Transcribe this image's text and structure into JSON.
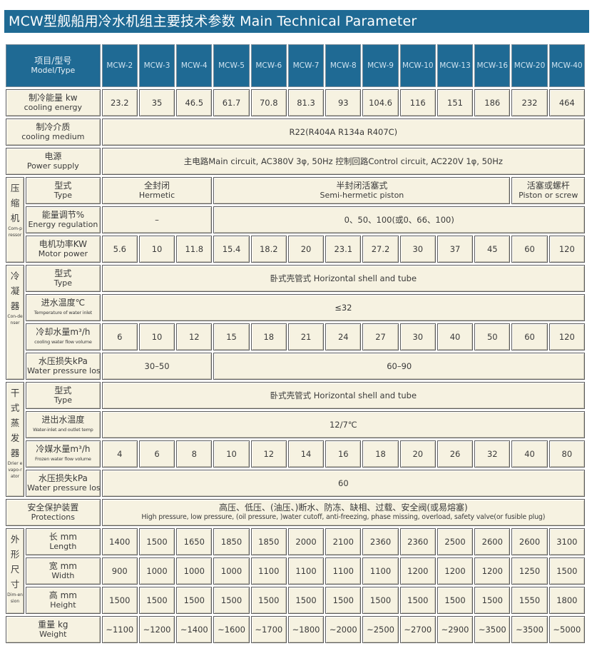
{
  "title": "MCW型舰船用冷水机组主要技术参数 Main Technical Parameter",
  "colors": {
    "title_bg": "#1f6a94",
    "header_bg": "#1f6a94",
    "cell_bg": "#f6f2e1"
  },
  "header": {
    "cn": "项目/型号",
    "en": "Model/Type",
    "models": [
      "MCW-2",
      "MCW-3",
      "MCW-4",
      "MCW-5",
      "MCW-6",
      "MCW-7",
      "MCW-8",
      "MCW-9",
      "MCW-10",
      "MCW-13",
      "MCW-16",
      "MCW-20",
      "MCW-40"
    ]
  },
  "sections": [
    {
      "rows": [
        {
          "cn": "制冷能量 kw",
          "en": "cooling energy",
          "cells": [
            {
              "text": "23.2"
            },
            {
              "text": "35"
            },
            {
              "text": "46.5"
            },
            {
              "text": "61.7"
            },
            {
              "text": "70.8"
            },
            {
              "text": "81.3"
            },
            {
              "text": "93"
            },
            {
              "text": "104.6"
            },
            {
              "text": "116"
            },
            {
              "text": "151"
            },
            {
              "text": "186"
            },
            {
              "text": "232"
            },
            {
              "text": "464"
            }
          ]
        }
      ]
    },
    {
      "rows": [
        {
          "cn": "制冷介质",
          "en": "cooling medium",
          "cells": [
            {
              "text": "R22(R404A  R134a  R407C)",
              "span": 13
            }
          ]
        }
      ]
    },
    {
      "rows": [
        {
          "cn": "电源",
          "en": "Power supply",
          "cells": [
            {
              "text": "主电路Main circuit, AC380V 3φ, 50Hz        控制回路Control circuit, AC220V 1φ, 50Hz",
              "span": 13
            }
          ]
        }
      ]
    },
    {
      "group": {
        "cn": "压缩机",
        "en": "Com-pressor"
      },
      "rows": [
        {
          "cn": "型式",
          "en": "Type",
          "cells": [
            {
              "text": "全封闭",
              "en": "Hermetic",
              "span": 3
            },
            {
              "text": "半封闭活塞式",
              "en": "Semi-hermetic piston",
              "span": 8
            },
            {
              "text": "活塞或螺杆",
              "en": "Piston or screw",
              "span": 2
            }
          ]
        },
        {
          "cn": "能量调节%",
          "en": "Energy regulation",
          "cells": [
            {
              "text": "–",
              "span": 3
            },
            {
              "text": "0、50、100(或0、66、100)",
              "span": 10
            }
          ]
        },
        {
          "cn": "电机功率KW",
          "en": "Motor power",
          "cells": [
            {
              "text": "5.6"
            },
            {
              "text": "10"
            },
            {
              "text": "11.8"
            },
            {
              "text": "15.4"
            },
            {
              "text": "18.2"
            },
            {
              "text": "20"
            },
            {
              "text": "23.1"
            },
            {
              "text": "27.2"
            },
            {
              "text": "30"
            },
            {
              "text": "37"
            },
            {
              "text": "45"
            },
            {
              "text": "60"
            },
            {
              "text": "120"
            }
          ]
        }
      ]
    },
    {
      "group": {
        "cn": "冷凝器",
        "en": "Con-denser"
      },
      "rows": [
        {
          "cn": "型式",
          "en": "Type",
          "cells": [
            {
              "text": "卧式壳管式  Horizontal shell and tube",
              "span": 13
            }
          ]
        },
        {
          "cn": "进水温度℃",
          "en": "Temperature of water inlet",
          "cells": [
            {
              "text": "≤32",
              "span": 13
            }
          ]
        },
        {
          "cn": "冷却水量m³/h",
          "en": "cooling water flow volume",
          "cells": [
            {
              "text": "6"
            },
            {
              "text": "10"
            },
            {
              "text": "12"
            },
            {
              "text": "15"
            },
            {
              "text": "18"
            },
            {
              "text": "21"
            },
            {
              "text": "24"
            },
            {
              "text": "27"
            },
            {
              "text": "30"
            },
            {
              "text": "40"
            },
            {
              "text": "50"
            },
            {
              "text": "60"
            },
            {
              "text": "120"
            }
          ]
        },
        {
          "cn": "水压损失kPa",
          "en": "Water pressure loss",
          "cells": [
            {
              "text": "30–50",
              "span": 3
            },
            {
              "text": "60–90",
              "span": 10
            }
          ]
        }
      ]
    },
    {
      "group": {
        "cn": "干式蒸发器",
        "en": "Drier evapo-rator"
      },
      "rows": [
        {
          "cn": "型式",
          "en": "Type",
          "cells": [
            {
              "text": "卧式壳管式  Horizontal shell and tube",
              "span": 13
            }
          ]
        },
        {
          "cn": "进出水温度",
          "en": "Water-inlet and outlet temp",
          "cells": [
            {
              "text": "12/7℃",
              "span": 13
            }
          ]
        },
        {
          "cn": "冷媒水量m³/h",
          "en": "Frozen water flow volume",
          "cells": [
            {
              "text": "4"
            },
            {
              "text": "6"
            },
            {
              "text": "8"
            },
            {
              "text": "10"
            },
            {
              "text": "12"
            },
            {
              "text": "14"
            },
            {
              "text": "16"
            },
            {
              "text": "18"
            },
            {
              "text": "20"
            },
            {
              "text": "26"
            },
            {
              "text": "32"
            },
            {
              "text": "40"
            },
            {
              "text": "80"
            }
          ]
        },
        {
          "cn": "水压损失kPa",
          "en": "Water pressure loss",
          "cells": [
            {
              "text": "60",
              "span": 13
            }
          ]
        }
      ]
    },
    {
      "rows": [
        {
          "cn": "安全保护装置",
          "en": "Protections",
          "cells": [
            {
              "text": "高压、低压、(油压、)断水、防冻、缺相、过载、安全阀(或易熔塞)",
              "en": "High pressure, low pressure, (oil pressure, )water cutoff, anti-freezing, phase missing, overload, safety valve(or fusible plug)",
              "span": 13,
              "prot": true
            }
          ]
        }
      ]
    },
    {
      "group": {
        "cn": "外形尺寸",
        "en": "Dim-ension"
      },
      "rows": [
        {
          "cn": "长 mm",
          "en": "Length",
          "cells": [
            {
              "text": "1400"
            },
            {
              "text": "1500"
            },
            {
              "text": "1650"
            },
            {
              "text": "1850"
            },
            {
              "text": "1850"
            },
            {
              "text": "2000"
            },
            {
              "text": "2100"
            },
            {
              "text": "2360"
            },
            {
              "text": "2360"
            },
            {
              "text": "2500"
            },
            {
              "text": "2600"
            },
            {
              "text": "2600"
            },
            {
              "text": "3100"
            }
          ]
        },
        {
          "cn": "宽 mm",
          "en": "Width",
          "cells": [
            {
              "text": "900"
            },
            {
              "text": "1000"
            },
            {
              "text": "1000"
            },
            {
              "text": "1000"
            },
            {
              "text": "1100"
            },
            {
              "text": "1100"
            },
            {
              "text": "1100"
            },
            {
              "text": "1100"
            },
            {
              "text": "1200"
            },
            {
              "text": "1200"
            },
            {
              "text": "1200"
            },
            {
              "text": "1250"
            },
            {
              "text": "1500"
            }
          ]
        },
        {
          "cn": "高 mm",
          "en": "Height",
          "cells": [
            {
              "text": "1500"
            },
            {
              "text": "1500"
            },
            {
              "text": "1500"
            },
            {
              "text": "1500"
            },
            {
              "text": "1500"
            },
            {
              "text": "1500"
            },
            {
              "text": "1500"
            },
            {
              "text": "1500"
            },
            {
              "text": "1500"
            },
            {
              "text": "1500"
            },
            {
              "text": "1500"
            },
            {
              "text": "1550"
            },
            {
              "text": "1800"
            }
          ]
        }
      ]
    },
    {
      "rows": [
        {
          "cn": "重量 kg",
          "en": "Weight",
          "cells": [
            {
              "text": "~1100"
            },
            {
              "text": "~1200"
            },
            {
              "text": "~1400"
            },
            {
              "text": "~1600"
            },
            {
              "text": "~1700"
            },
            {
              "text": "~1800"
            },
            {
              "text": "~2000"
            },
            {
              "text": "~2500"
            },
            {
              "text": "~2700"
            },
            {
              "text": "~2900"
            },
            {
              "text": "~3500"
            },
            {
              "text": "~3500"
            },
            {
              "text": "~5000"
            }
          ]
        }
      ]
    }
  ]
}
